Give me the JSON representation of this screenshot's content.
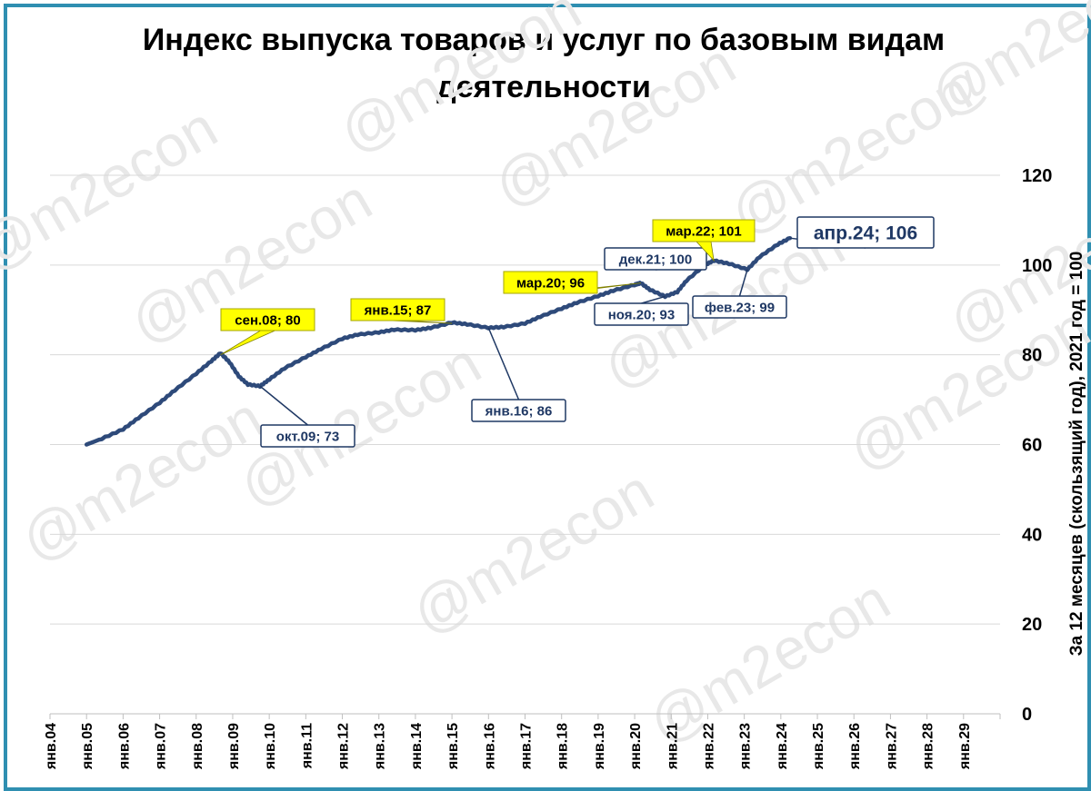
{
  "chart_data": {
    "type": "line",
    "title": "Индекс выпуска товаров и услуг по базовым видам деятельности",
    "title_lines": [
      "Индекс выпуска товаров и услуг по базовым видам",
      "деятельности"
    ],
    "ylabel": "За 12 месяцев (скользящий год), 2021 год =  100",
    "ylim": [
      0,
      120
    ],
    "y_ticks": [
      "0",
      "20",
      "40",
      "60",
      "80",
      "100",
      "120"
    ],
    "y_axis_side": "right",
    "x_ticks": [
      "янв.04",
      "янв.05",
      "янв.06",
      "янв.07",
      "янв.08",
      "янв.09",
      "янв.10",
      "янв.11",
      "янв.12",
      "янв.13",
      "янв.14",
      "янв.15",
      "янв.16",
      "янв.17",
      "янв.18",
      "янв.19",
      "янв.20",
      "янв.21",
      "янв.22",
      "янв.23",
      "янв.24",
      "янв.25",
      "янв.26",
      "янв.27",
      "янв.28",
      "янв.29"
    ],
    "xlim": [
      "янв.04",
      "янв.30"
    ],
    "grid": true,
    "line_color": "#2e4a7a",
    "series": [
      {
        "name": "",
        "points": [
          [
            "2005-01",
            60
          ],
          [
            "2005-06",
            61.3
          ],
          [
            "2006-01",
            63.4
          ],
          [
            "2006-06",
            65.9
          ],
          [
            "2007-01",
            69.3
          ],
          [
            "2007-06",
            72.1
          ],
          [
            "2008-01",
            75.8
          ],
          [
            "2008-06",
            78.6
          ],
          [
            "2008-09",
            80.4
          ],
          [
            "2008-12",
            78.3
          ],
          [
            "2009-03",
            75.2
          ],
          [
            "2009-06",
            73.4
          ],
          [
            "2009-10",
            73.0
          ],
          [
            "2010-01",
            74.5
          ],
          [
            "2010-06",
            77.0
          ],
          [
            "2011-01",
            79.5
          ],
          [
            "2011-06",
            81.3
          ],
          [
            "2012-01",
            83.6
          ],
          [
            "2012-06",
            84.5
          ],
          [
            "2013-01",
            85.0
          ],
          [
            "2013-06",
            85.6
          ],
          [
            "2014-01",
            85.5
          ],
          [
            "2014-06",
            86.0
          ],
          [
            "2015-01",
            87.2
          ],
          [
            "2015-06",
            86.8
          ],
          [
            "2016-01",
            86.0
          ],
          [
            "2016-06",
            86.2
          ],
          [
            "2017-01",
            87.0
          ],
          [
            "2017-06",
            88.5
          ],
          [
            "2018-01",
            90.3
          ],
          [
            "2018-06",
            91.6
          ],
          [
            "2019-01",
            93.1
          ],
          [
            "2019-06",
            94.3
          ],
          [
            "2020-01",
            95.6
          ],
          [
            "2020-03",
            96.0
          ],
          [
            "2020-06",
            94.5
          ],
          [
            "2020-11",
            93.0
          ],
          [
            "2021-03",
            94.0
          ],
          [
            "2021-06",
            96.5
          ],
          [
            "2021-12",
            100.0
          ],
          [
            "2022-03",
            101.0
          ],
          [
            "2022-08",
            100.3
          ],
          [
            "2023-02",
            99.0
          ],
          [
            "2023-06",
            101.8
          ],
          [
            "2023-12",
            104.6
          ],
          [
            "2024-04",
            106.0
          ]
        ]
      }
    ],
    "annotations": [
      {
        "label": "сен.08; 80",
        "x": "2008-09",
        "y": 80,
        "style": "highlight"
      },
      {
        "label": "окт.09; 73",
        "x": "2009-10",
        "y": 73,
        "style": "outline"
      },
      {
        "label": "янв.15; 87",
        "x": "2015-01",
        "y": 87,
        "style": "highlight"
      },
      {
        "label": "янв.16; 86",
        "x": "2016-01",
        "y": 86,
        "style": "outline"
      },
      {
        "label": "мар.20; 96",
        "x": "2020-03",
        "y": 96,
        "style": "highlight"
      },
      {
        "label": "ноя.20; 93",
        "x": "2020-11",
        "y": 93,
        "style": "outline"
      },
      {
        "label": "дек.21; 100",
        "x": "2021-12",
        "y": 100,
        "style": "outline"
      },
      {
        "label": "мар.22; 101",
        "x": "2022-03",
        "y": 101,
        "style": "highlight"
      },
      {
        "label": "фев.23; 99",
        "x": "2023-02",
        "y": 99,
        "style": "outline"
      },
      {
        "label": "апр.24; 106",
        "x": "2024-04",
        "y": 106,
        "style": "outline-large"
      }
    ],
    "watermark": "@m2econ",
    "colors": {
      "highlight_fill": "#ffff00",
      "outline_border": "#1f3864",
      "outline_text": "#1f3864",
      "frame": "#2f8fb1",
      "grid": "#d9d9d9"
    }
  }
}
